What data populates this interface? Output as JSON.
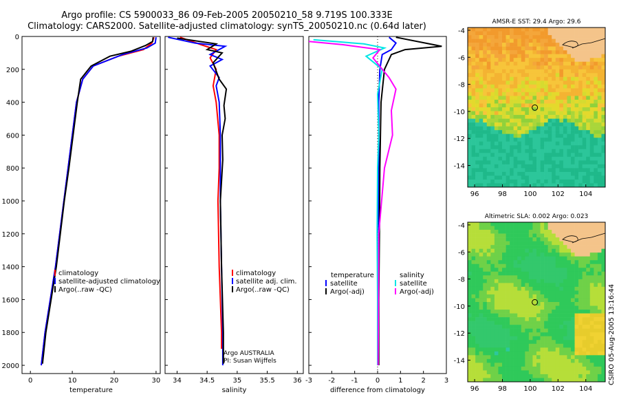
{
  "header": {
    "title_line1": "Argo profile: CS 5900033_86 09-Feb-2005 20050210_58 9.719S 100.333E",
    "title_line2": "Climatology: CARS2000. Satellite-adjusted climatology: synTS_20050210.nc (0.64d later)"
  },
  "stamp": "CSIRO 05-Aug-2005 13:16:44",
  "colors": {
    "climatology": "#ff0000",
    "satellite": "#0000ff",
    "argo": "#000000",
    "salinity_sat": "#00e5e5",
    "salinity_argo": "#ff00ff"
  },
  "chart_data": [
    {
      "type": "line",
      "id": "temperature",
      "xlabel": "temperature",
      "ylabel": "",
      "xlim": [
        -2,
        31
      ],
      "ylim": [
        2050,
        0
      ],
      "xticks": [
        0,
        10,
        20,
        30
      ],
      "yticks": [
        0,
        200,
        400,
        600,
        800,
        1000,
        1200,
        1400,
        1600,
        1800,
        2000
      ],
      "legend": [
        "climatology",
        "satellite-adjusted climatology",
        "Argo(..raw -QC)"
      ],
      "series": [
        {
          "name": "climatology",
          "color": "#ff0000",
          "points": [
            [
              29.5,
              5
            ],
            [
              29,
              40
            ],
            [
              27,
              80
            ],
            [
              21,
              120
            ],
            [
              15,
              180
            ],
            [
              12.5,
              260
            ],
            [
              11,
              400
            ],
            [
              10,
              600
            ],
            [
              9,
              800
            ],
            [
              8,
              1000
            ],
            [
              6,
              1400
            ],
            [
              3.5,
              1800
            ],
            [
              2.6,
              2000
            ]
          ]
        },
        {
          "name": "satellite-adjusted climatology",
          "color": "#0000ff",
          "points": [
            [
              30,
              5
            ],
            [
              29.8,
              40
            ],
            [
              27.8,
              70
            ],
            [
              22,
              110
            ],
            [
              15,
              180
            ],
            [
              12.5,
              260
            ],
            [
              11,
              400
            ],
            [
              10,
              600
            ],
            [
              9,
              800
            ],
            [
              8,
              1000
            ],
            [
              6,
              1400
            ],
            [
              3.5,
              1800
            ],
            [
              2.6,
              2000
            ]
          ]
        },
        {
          "name": "Argo(..raw -QC)",
          "color": "#000000",
          "points": [
            [
              29.3,
              5
            ],
            [
              29.2,
              30
            ],
            [
              27.5,
              55
            ],
            [
              24,
              90
            ],
            [
              19,
              120
            ],
            [
              14.5,
              180
            ],
            [
              12,
              260
            ],
            [
              11.2,
              400
            ],
            [
              10.2,
              600
            ],
            [
              9.2,
              800
            ],
            [
              8.1,
              1000
            ],
            [
              6.2,
              1400
            ],
            [
              3.7,
              1800
            ],
            [
              2.9,
              1990
            ]
          ]
        }
      ]
    },
    {
      "type": "line",
      "id": "salinity",
      "xlabel": "salinity",
      "ylabel": "",
      "xlim": [
        33.8,
        36.1
      ],
      "ylim": [
        2050,
        0
      ],
      "xticks": [
        34,
        34.5,
        35,
        35.5,
        36
      ],
      "legend": [
        "climatology",
        "satellite adj. clim.",
        "Argo(..raw -QC)"
      ],
      "annotation": [
        "Argo AUSTRALIA",
        "PI: Susan Wijffels"
      ],
      "series": [
        {
          "name": "climatology",
          "color": "#ff0000",
          "points": [
            [
              34.05,
              5
            ],
            [
              34.4,
              50
            ],
            [
              34.65,
              80
            ],
            [
              34.55,
              130
            ],
            [
              34.65,
              200
            ],
            [
              34.6,
              300
            ],
            [
              34.65,
              400
            ],
            [
              34.7,
              600
            ],
            [
              34.7,
              800
            ],
            [
              34.68,
              1000
            ],
            [
              34.7,
              1400
            ],
            [
              34.74,
              1800
            ],
            [
              34.74,
              1900
            ]
          ]
        },
        {
          "name": "satellite adj. clim.",
          "color": "#0000ff",
          "points": [
            [
              33.85,
              5
            ],
            [
              34.3,
              40
            ],
            [
              34.8,
              60
            ],
            [
              34.55,
              110
            ],
            [
              34.75,
              140
            ],
            [
              34.55,
              180
            ],
            [
              34.7,
              250
            ],
            [
              34.65,
              300
            ],
            [
              34.7,
              400
            ],
            [
              34.72,
              600
            ],
            [
              34.72,
              800
            ],
            [
              34.72,
              1000
            ],
            [
              34.74,
              1400
            ],
            [
              34.76,
              1800
            ],
            [
              34.76,
              2000
            ]
          ]
        },
        {
          "name": "Argo(..raw -QC)",
          "color": "#000000",
          "points": [
            [
              34.0,
              10
            ],
            [
              34.65,
              45
            ],
            [
              34.5,
              80
            ],
            [
              34.75,
              100
            ],
            [
              34.6,
              160
            ],
            [
              34.7,
              260
            ],
            [
              34.82,
              320
            ],
            [
              34.78,
              420
            ],
            [
              34.8,
              500
            ],
            [
              34.75,
              600
            ],
            [
              34.76,
              750
            ],
            [
              34.72,
              1000
            ],
            [
              34.74,
              1400
            ],
            [
              34.77,
              1800
            ],
            [
              34.77,
              1990
            ]
          ]
        }
      ]
    },
    {
      "type": "line",
      "id": "difference",
      "xlabel": "difference from climatology",
      "ylabel": "",
      "xlim": [
        -3,
        3
      ],
      "ylim": [
        2050,
        0
      ],
      "xticks": [
        -3,
        -2,
        -1,
        0,
        1,
        2,
        3
      ],
      "legend_temperature": {
        "title": "temperature",
        "items": [
          "satellite",
          "Argo(-adj)"
        ]
      },
      "legend_salinity": {
        "title": "salinity",
        "items": [
          "satellite",
          "Argo(-adj)"
        ]
      },
      "series": [
        {
          "name": "temperature satellite",
          "color": "#0000ff",
          "points": [
            [
              0.5,
              5
            ],
            [
              0.8,
              40
            ],
            [
              0.6,
              80
            ],
            [
              0.2,
              110
            ],
            [
              0.1,
              200
            ],
            [
              0.05,
              400
            ],
            [
              0.05,
              800
            ],
            [
              0.04,
              1200
            ],
            [
              0.02,
              1600
            ],
            [
              0.02,
              2000
            ]
          ]
        },
        {
          "name": "temperature Argo(-adj)",
          "color": "#000000",
          "points": [
            [
              0.8,
              5
            ],
            [
              2.8,
              60
            ],
            [
              1.2,
              80
            ],
            [
              0.6,
              110
            ],
            [
              0.3,
              200
            ],
            [
              0.15,
              400
            ],
            [
              0.1,
              800
            ],
            [
              0.08,
              1200
            ],
            [
              0.05,
              1600
            ],
            [
              0.05,
              2000
            ]
          ]
        },
        {
          "name": "salinity satellite",
          "color": "#00e5e5",
          "points": [
            [
              -2.8,
              20
            ],
            [
              -0.6,
              45
            ],
            [
              0.3,
              70
            ],
            [
              -0.5,
              120
            ],
            [
              0.2,
              200
            ],
            [
              0,
              350
            ],
            [
              0.05,
              600
            ],
            [
              0,
              800
            ],
            [
              -0.02,
              1200
            ],
            [
              0,
              1600
            ],
            [
              0,
              2000
            ]
          ]
        },
        {
          "name": "salinity Argo(-adj)",
          "color": "#ff00ff",
          "points": [
            [
              -3,
              30
            ],
            [
              -1.5,
              50
            ],
            [
              0.1,
              80
            ],
            [
              -0.2,
              130
            ],
            [
              0.5,
              250
            ],
            [
              0.8,
              320
            ],
            [
              0.6,
              450
            ],
            [
              0.65,
              600
            ],
            [
              0.3,
              800
            ],
            [
              0.05,
              1200
            ],
            [
              0.04,
              1600
            ],
            [
              0.02,
              2000
            ]
          ]
        }
      ]
    },
    {
      "type": "heatmap",
      "id": "sst_map",
      "title": "AMSR-E SST: 29.4 Argo: 29.6",
      "xlim": [
        95.5,
        105.4
      ],
      "ylim": [
        -15.6,
        -3.8
      ],
      "xticks": [
        96,
        98,
        100,
        102,
        104
      ],
      "yticks": [
        -4,
        -6,
        -8,
        -10,
        -12,
        -14
      ],
      "argo_position": [
        100.333,
        -9.719
      ]
    },
    {
      "type": "heatmap",
      "id": "sla_map",
      "title": "Altimetric SLA: 0.002 Argo: 0.023",
      "xlim": [
        95.5,
        105.4
      ],
      "ylim": [
        -15.6,
        -3.8
      ],
      "xticks": [
        96,
        98,
        100,
        102,
        104
      ],
      "yticks": [
        -4,
        -6,
        -8,
        -10,
        -12,
        -14
      ],
      "argo_position": [
        100.333,
        -9.719
      ]
    }
  ]
}
